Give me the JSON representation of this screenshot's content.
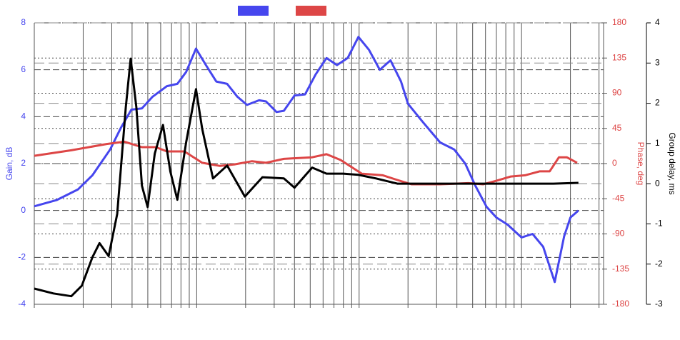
{
  "chart_data": {
    "type": "line",
    "xscale": "log",
    "xlim": [
      10,
      32000
    ],
    "xticks": [
      10,
      20,
      30,
      40,
      50,
      60,
      70,
      80,
      90,
      100,
      200,
      300,
      400,
      500,
      600,
      700,
      800,
      900,
      1000,
      2000,
      3000,
      4000,
      5000,
      6000,
      7000,
      8000,
      9000,
      10000,
      20000,
      30000
    ],
    "ylabel": "Gain, dB",
    "ylim": [
      -4,
      8
    ],
    "yticks": [
      -4,
      -2,
      0,
      2,
      4,
      6,
      8
    ],
    "y2label": "Phase, deg",
    "y2lim": [
      -180,
      180
    ],
    "y2ticks": [
      -180,
      -135,
      -90,
      -45,
      0,
      45,
      90,
      135,
      180
    ],
    "y3label": "Group delay, ms",
    "y3lim": [
      -3,
      4
    ],
    "y3ticks": [
      -3,
      -2,
      -1,
      0,
      1,
      2,
      3,
      4
    ],
    "grid": true,
    "legend": "top",
    "series": [
      {
        "color": "#4646ee",
        "axis": "y",
        "x": [
          10,
          13.8,
          18.6,
          22.8,
          29.3,
          34,
          39.6,
          46,
          53.5,
          65.6,
          76,
          86,
          99,
          114,
          132,
          154,
          178,
          204,
          242,
          267,
          310,
          344,
          400,
          465,
          540,
          630,
          731,
          850,
          990,
          1150,
          1340,
          1560,
          1810,
          2000,
          2450,
          3150,
          3850,
          4500,
          5200,
          6100,
          7000,
          8200,
          10000,
          11700,
          13600,
          16000,
          18300,
          20000,
          22400
        ],
        "values": [
          0.18,
          0.45,
          0.9,
          1.5,
          2.6,
          3.5,
          4.3,
          4.35,
          4.85,
          5.3,
          5.4,
          5.9,
          6.9,
          6.2,
          5.5,
          5.4,
          4.85,
          4.5,
          4.7,
          4.65,
          4.2,
          4.25,
          4.9,
          4.95,
          5.8,
          6.5,
          6.2,
          6.5,
          7.4,
          6.85,
          6.0,
          6.4,
          5.5,
          4.55,
          3.8,
          2.9,
          2.6,
          2.0,
          1.05,
          0.15,
          -0.3,
          -0.6,
          -1.15,
          -1.0,
          -1.55,
          -3.05,
          -1.1,
          -0.3,
          0.0
        ]
      },
      {
        "color": "#dd4646",
        "axis": "y2",
        "x": [
          10,
          16.9,
          27.9,
          35.9,
          46,
          56,
          65.6,
          84,
          108,
          139,
          171,
          219,
          267,
          344,
          514,
          630,
          770,
          1040,
          1400,
          1720,
          2100,
          3150,
          4700,
          5800,
          7000,
          8600,
          10500,
          12900,
          14900,
          17000,
          19000,
          22000
        ],
        "values": [
          10,
          17,
          25,
          28,
          21,
          21,
          15.5,
          15.5,
          1,
          -3,
          -1,
          3,
          1,
          6,
          8,
          12,
          4.6,
          -13,
          -15,
          -21,
          -26.5,
          -26.5,
          -25,
          -26.5,
          -22,
          -16.5,
          -15,
          -10,
          -10,
          8,
          8,
          1
        ]
      },
      {
        "color": "#000000",
        "axis": "y3",
        "x": [
          10,
          13.1,
          16.9,
          19.6,
          22.8,
          25.2,
          28.7,
          32.4,
          36.6,
          39.2,
          42.5,
          46,
          49.9,
          55.2,
          62,
          68.8,
          76,
          86,
          99,
          108,
          126,
          154,
          198,
          254,
          344,
          400,
          514,
          630,
          800,
          990,
          1270,
          1720,
          2600,
          7000,
          15700,
          22400
        ],
        "values": [
          -2.61,
          -2.73,
          -2.8,
          -2.54,
          -1.83,
          -1.48,
          -1.8,
          -0.75,
          1.9,
          3.11,
          1.9,
          -0.05,
          -0.58,
          0.75,
          1.46,
          0.3,
          -0.4,
          1.02,
          2.35,
          1.37,
          0.13,
          0.45,
          -0.32,
          0.16,
          0.13,
          -0.1,
          0.4,
          0.25,
          0.25,
          0.22,
          0.13,
          0.0,
          0.0,
          0.0,
          0.0,
          0.02
        ]
      }
    ]
  }
}
